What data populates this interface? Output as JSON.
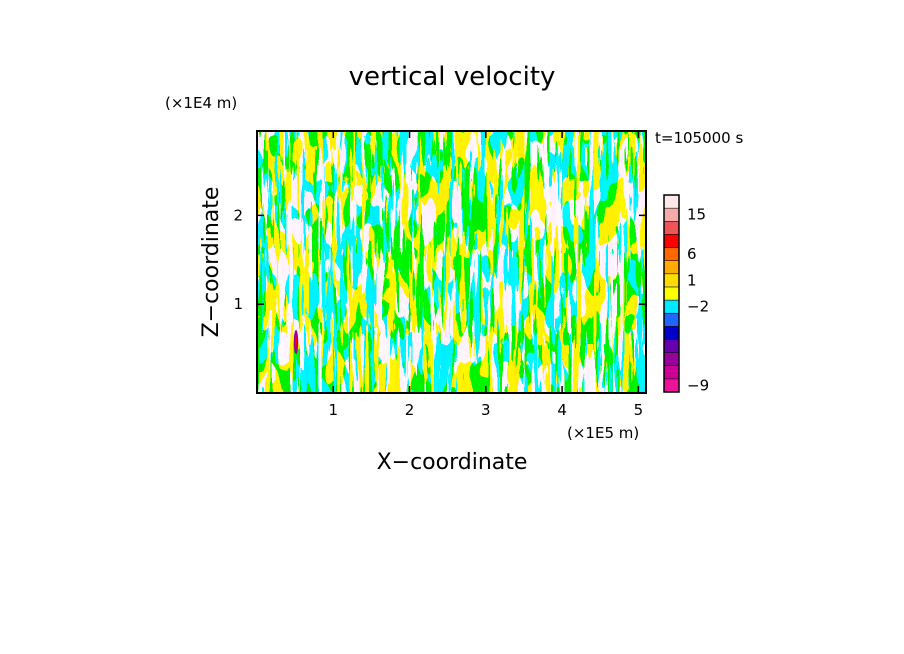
{
  "chart_data": {
    "type": "heatmap",
    "title": "vertical velocity",
    "xlabel": "X−coordinate",
    "ylabel": "Z−coordinate",
    "x_scale_label": "(×1E5 m)",
    "y_scale_label": "(×1E4 m)",
    "time_label": "t=105000 s",
    "xlim": [
      0,
      5.1
    ],
    "ylim": [
      0,
      2.95
    ],
    "x_ticks": [
      1,
      2,
      3,
      4,
      5
    ],
    "x_tick_labels": [
      "1",
      "2",
      "3",
      "4",
      "5"
    ],
    "y_ticks": [
      1,
      2
    ],
    "y_tick_labels": [
      "1",
      "2"
    ],
    "field_colors": {
      "positive": "#ffff00",
      "negative": "#00e8ff"
    },
    "colorbar": {
      "levels": [
        {
          "color": "#ee1199",
          "label": "−9"
        },
        {
          "color": "#cc0099"
        },
        {
          "color": "#990099"
        },
        {
          "color": "#6600aa"
        },
        {
          "color": "#0000cc"
        },
        {
          "color": "#2266ff"
        },
        {
          "color": "#00e8ff",
          "label": "−2"
        },
        {
          "color": "#ffff00"
        },
        {
          "color": "#ffdd00",
          "label": "1"
        },
        {
          "color": "#ffaa00"
        },
        {
          "color": "#ff6600",
          "label": "6"
        },
        {
          "color": "#ff0000"
        },
        {
          "color": "#ee5555"
        },
        {
          "color": "#f4aaaa",
          "label": "15"
        },
        {
          "color": "#fde8e8"
        }
      ]
    }
  }
}
